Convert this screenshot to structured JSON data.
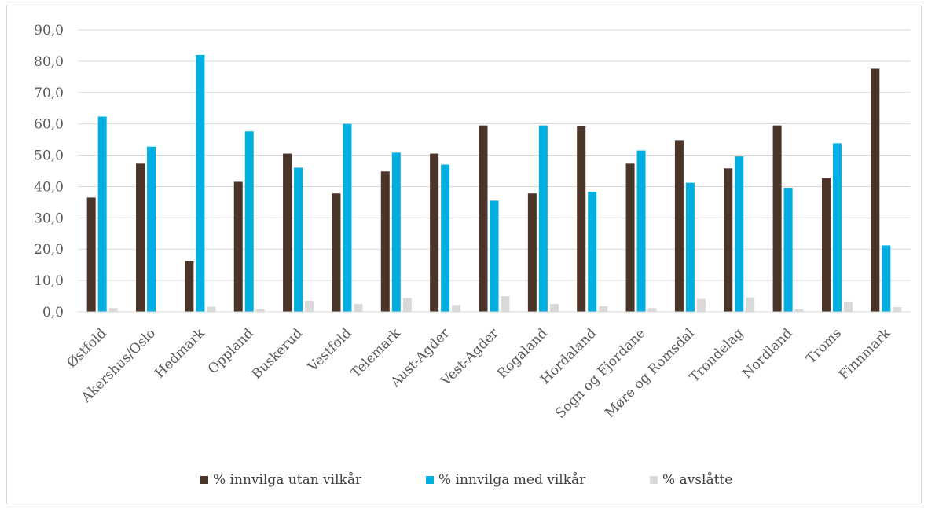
{
  "chart_data": {
    "type": "bar",
    "title": "",
    "xlabel": "",
    "ylabel": "",
    "ylim": [
      0,
      90
    ],
    "yticks": [
      "0,0",
      "10,0",
      "20,0",
      "30,0",
      "40,0",
      "50,0",
      "60,0",
      "70,0",
      "80,0",
      "90,0"
    ],
    "grid": true,
    "legend_position": "bottom",
    "categories": [
      "Østfold",
      "Akershus/Oslo",
      "Hedmark",
      "Oppland",
      "Buskerud",
      "Vestfold",
      "Telemark",
      "Aust-Agder",
      "Vest-Agder",
      "Rogaland",
      "Hordaland",
      "Sogn og Fjordane",
      "Møre og Romsdal",
      "Trøndelag",
      "Nordland",
      "Troms",
      "Finnmark"
    ],
    "series": [
      {
        "name": "% innvilga utan vilkår",
        "color": "#4b3428",
        "values": [
          36.5,
          47.3,
          16.3,
          41.5,
          50.5,
          37.8,
          44.8,
          50.5,
          59.5,
          37.8,
          59.2,
          47.3,
          54.8,
          45.8,
          59.5,
          42.8,
          77.6
        ]
      },
      {
        "name": "% innvilga med vilkår",
        "color": "#00aee0",
        "values": [
          62.3,
          52.7,
          82.0,
          57.6,
          46.0,
          60.0,
          50.8,
          47.0,
          35.5,
          59.5,
          38.3,
          51.5,
          41.2,
          49.6,
          39.6,
          53.8,
          21.2
        ]
      },
      {
        "name": "% avslåtte",
        "color": "#d9d9d9",
        "values": [
          1.2,
          0.0,
          1.6,
          0.8,
          3.5,
          2.5,
          4.4,
          2.2,
          5.0,
          2.5,
          1.8,
          1.2,
          4.1,
          4.6,
          0.9,
          3.3,
          1.5
        ]
      }
    ]
  }
}
